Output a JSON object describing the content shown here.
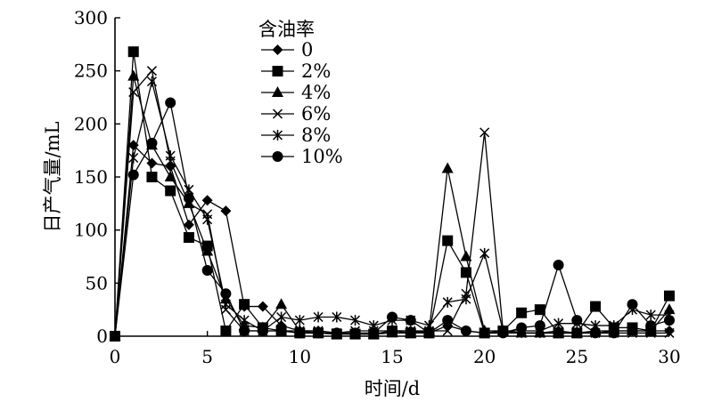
{
  "chart_data": {
    "type": "line",
    "title": "",
    "xlabel": "时间/d",
    "ylabel": "日产气量/mL",
    "xlim": [
      0,
      30
    ],
    "ylim": [
      0,
      300
    ],
    "xticks": [
      0,
      5,
      10,
      15,
      20,
      25,
      30
    ],
    "yticks": [
      0,
      50,
      100,
      150,
      200,
      250,
      300
    ],
    "grid": false,
    "legend_title": "含油率",
    "legend_position": "top-left (inside)",
    "x": [
      0,
      1,
      2,
      3,
      4,
      5,
      6,
      7,
      8,
      9,
      10,
      11,
      12,
      13,
      14,
      15,
      16,
      17,
      18,
      19,
      20,
      21,
      22,
      23,
      24,
      25,
      26,
      27,
      28,
      29,
      30
    ],
    "series": [
      {
        "name": "0",
        "marker": "diamond",
        "values": [
          0,
          180,
          163,
          160,
          105,
          128,
          118,
          28,
          28,
          10,
          5,
          5,
          3,
          2,
          2,
          5,
          5,
          3,
          10,
          5,
          3,
          3,
          3,
          3,
          5,
          3,
          3,
          5,
          5,
          5,
          5
        ]
      },
      {
        "name": "2%",
        "marker": "square",
        "values": [
          0,
          268,
          150,
          137,
          93,
          85,
          5,
          30,
          8,
          5,
          3,
          3,
          2,
          2,
          2,
          5,
          3,
          3,
          90,
          60,
          3,
          5,
          22,
          25,
          3,
          3,
          28,
          8,
          8,
          5,
          38
        ]
      },
      {
        "name": "4%",
        "marker": "triangle",
        "values": [
          0,
          245,
          180,
          150,
          125,
          80,
          35,
          10,
          8,
          30,
          5,
          3,
          2,
          2,
          2,
          3,
          3,
          5,
          158,
          75,
          5,
          5,
          3,
          3,
          3,
          3,
          5,
          5,
          5,
          5,
          25
        ]
      },
      {
        "name": "6%",
        "marker": "x",
        "values": [
          0,
          230,
          250,
          165,
          125,
          115,
          25,
          5,
          5,
          5,
          5,
          5,
          3,
          5,
          5,
          5,
          5,
          5,
          5,
          40,
          192,
          5,
          3,
          3,
          3,
          3,
          3,
          3,
          3,
          3,
          3
        ]
      },
      {
        "name": "8%",
        "marker": "asterisk",
        "values": [
          0,
          168,
          240,
          170,
          138,
          110,
          30,
          15,
          5,
          18,
          15,
          18,
          18,
          15,
          10,
          15,
          15,
          10,
          32,
          35,
          78,
          5,
          5,
          5,
          12,
          12,
          10,
          10,
          25,
          20,
          20
        ]
      },
      {
        "name": "10%",
        "marker": "circle",
        "values": [
          0,
          152,
          182,
          220,
          130,
          62,
          40,
          5,
          5,
          5,
          3,
          3,
          3,
          3,
          3,
          18,
          15,
          3,
          15,
          5,
          3,
          3,
          8,
          10,
          67,
          15,
          3,
          3,
          30,
          10,
          15
        ]
      }
    ]
  }
}
